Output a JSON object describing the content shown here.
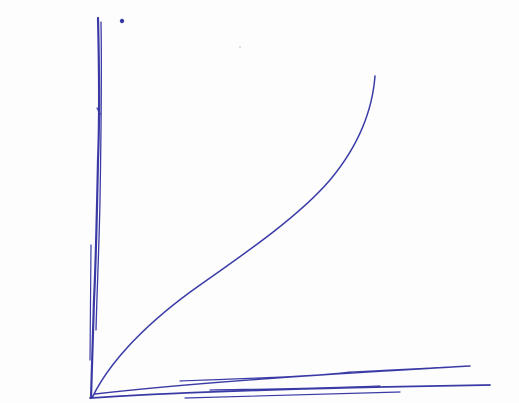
{
  "sketch": {
    "ink_color": "#3a3aa6",
    "paper_color": "#fdfdfd",
    "text_labels": []
  }
}
